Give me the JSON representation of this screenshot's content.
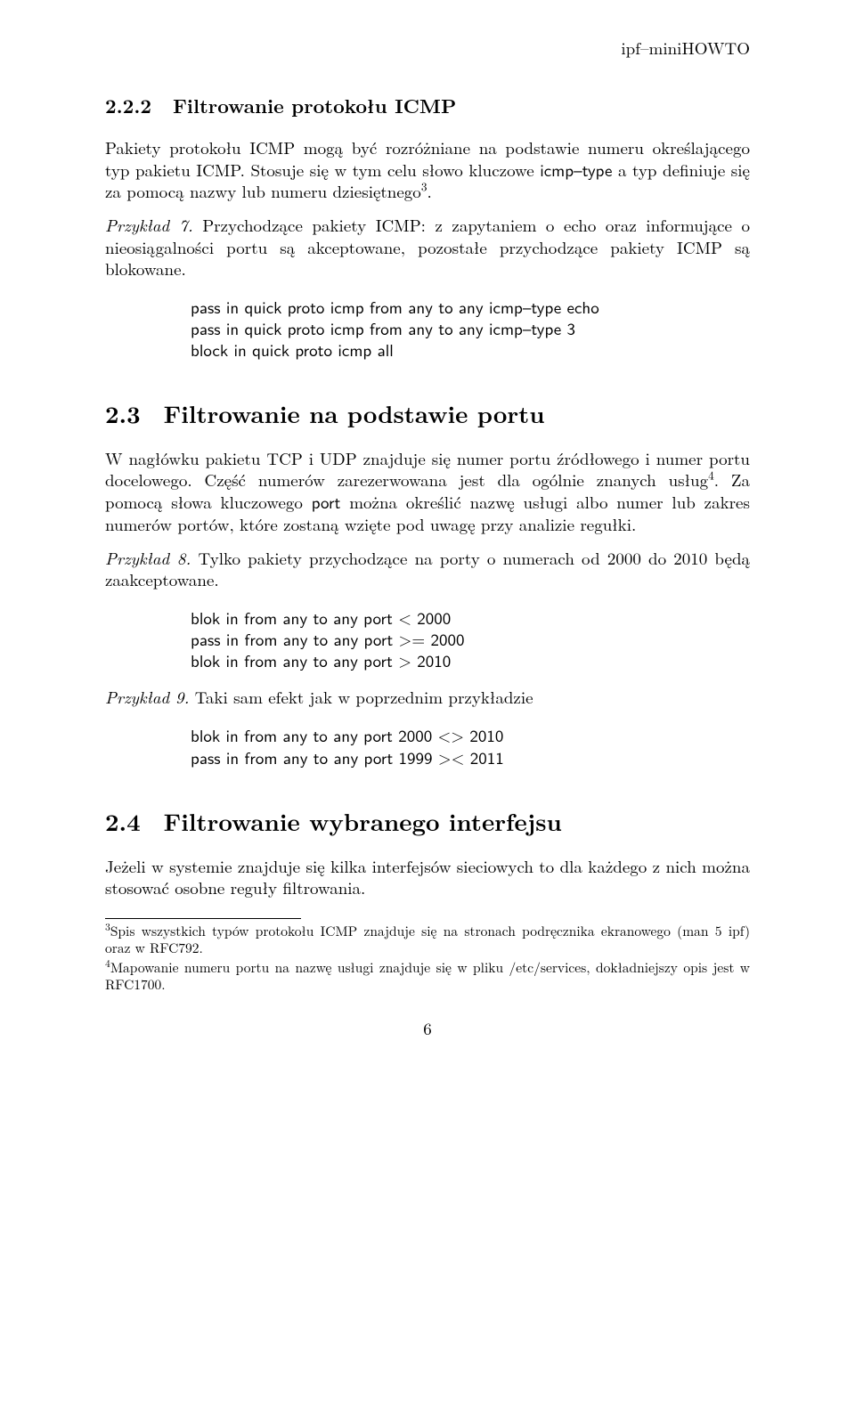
{
  "header": {
    "right": "ipf–miniHOWTO"
  },
  "s222": {
    "num": "2.2.2",
    "title": "Filtrowanie protokołu ICMP",
    "p1a": "Pakiety protokołu ICMP mogą być rozróżniane na podstawie numeru określającego typ pakietu ICMP. Stosuje się w tym celu słowo kluczowe ",
    "p1_sans": "icmp–type",
    "p1b": " a typ definiuje się za pomocą nazwy lub numeru dziesiętnego",
    "p1_sup": "3",
    "p1c": ".",
    "ex7_label": "Przykład 7.",
    "ex7_text": " Przychodzące pakiety ICMP: z zapytaniem o echo oraz informujące o nieosiągalności portu są akceptowane, pozostałe przychodzące pakiety ICMP są blokowane.",
    "code1": "pass in quick proto icmp from any to any icmp–type echo\npass in quick proto icmp from any to any icmp–type 3\nblock in quick proto icmp all"
  },
  "s23": {
    "num": "2.3",
    "title": "Filtrowanie na podstawie portu",
    "p1a": "W nagłówku pakietu TCP i UDP znajduje się numer portu źródłowego i numer portu docelowego. Część numerów zarezerwowana jest dla ogólnie znanych usług",
    "p1_sup": "4",
    "p1b": ". Za pomocą słowa kluczowego ",
    "p1_sans": "port",
    "p1c": " można określić nazwę usługi albo numer lub zakres numerów portów, które zostaną wzięte pod uwagę przy analizie regułki.",
    "ex8_label": "Przykład 8.",
    "ex8_text": " Tylko pakiety przychodzące na porty o numerach od 2000 do 2010 będą zaakceptowane.",
    "code2": "blok in from any to any port < 2000\npass in from any to any port >= 2000\nblok in from any to any port > 2010",
    "ex9_label": "Przykład 9.",
    "ex9_text": " Taki sam efekt jak w poprzednim przykładzie",
    "code3": "blok in from any to any port 2000 <> 2010\npass in from any to any port 1999 >< 2011"
  },
  "s24": {
    "num": "2.4",
    "title": "Filtrowanie wybranego interfejsu",
    "p1": "Jeżeli w systemie znajduje się kilka interfejsów sieciowych to dla każdego z nich można stosować osobne reguły filtrowania."
  },
  "footnotes": {
    "f3_sup": "3",
    "f3": "Spis wszystkich typów protokołu ICMP znajduje się na stronach podręcznika ekranowego (man 5 ipf) oraz w RFC792.",
    "f4_sup": "4",
    "f4": "Mapowanie numeru portu na nazwę usługi znajduje się w pliku /etc/services, dokładniejszy opis jest w RFC1700."
  },
  "page_number": "6"
}
